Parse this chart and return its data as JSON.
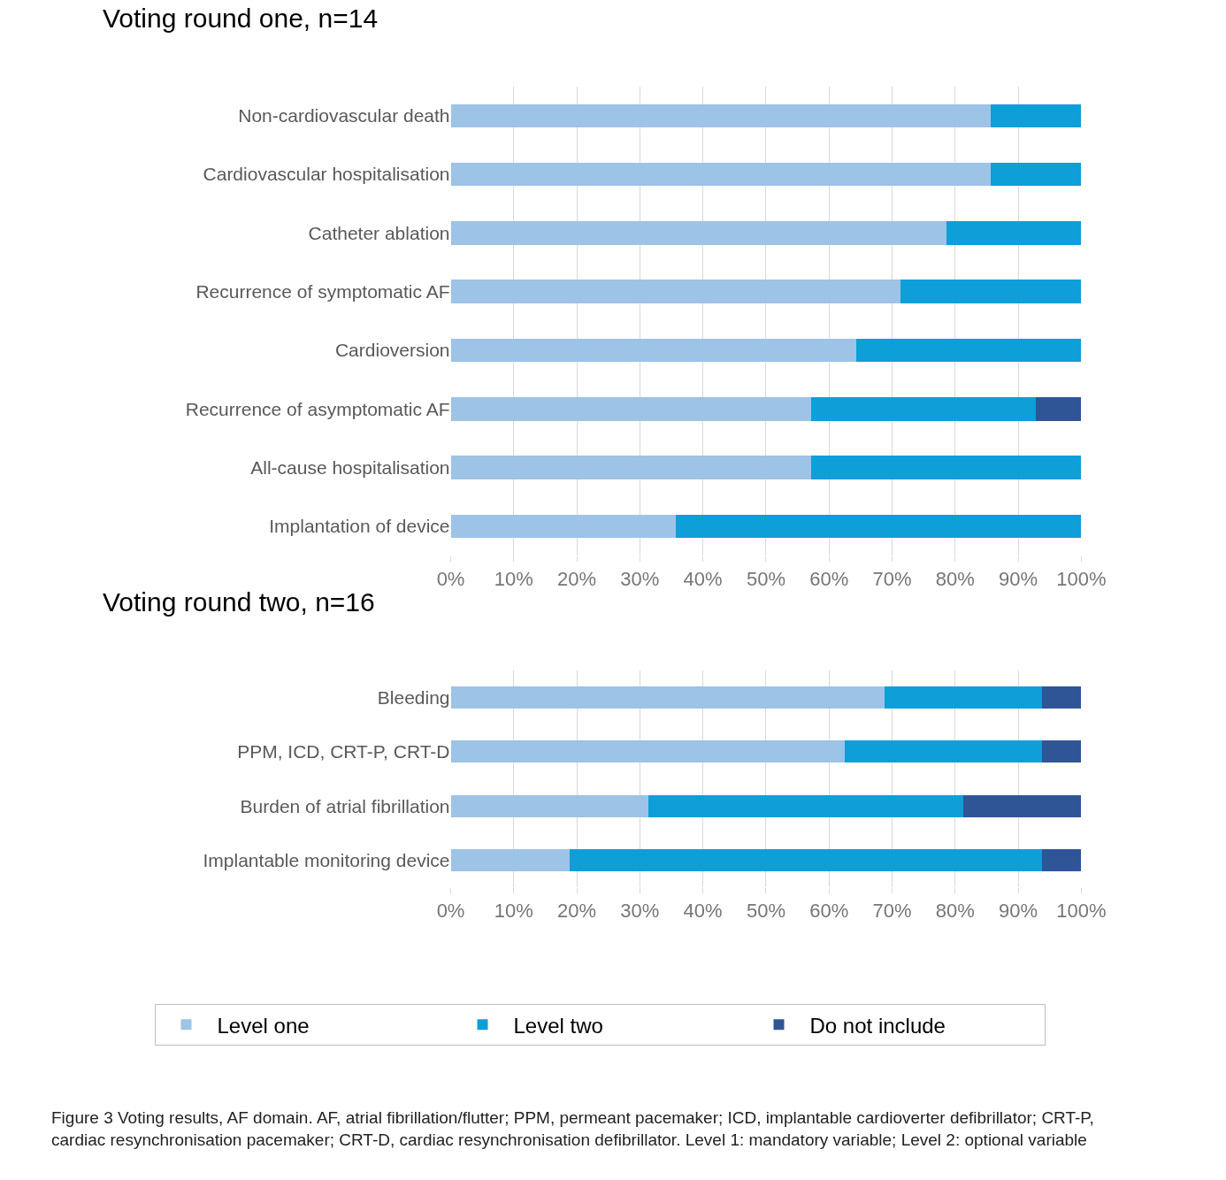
{
  "chart_data": [
    {
      "type": "bar",
      "orientation": "horizontal",
      "stacked": true,
      "title": "Voting round one, n=14",
      "categories": [
        "Non-cardiovascular death",
        "Cardiovascular hospitalisation",
        "Catheter ablation",
        "Recurrence of symptomatic AF",
        "Cardioversion",
        "Recurrence of asymptomatic AF",
        "All-cause hospitalisation",
        "Implantation of device"
      ],
      "series": [
        {
          "color": "#9dc3e6",
          "values": [
            85.7,
            85.7,
            78.6,
            71.4,
            64.3,
            57.1,
            57.1,
            35.7
          ]
        },
        {
          "color": "#0e9fd8",
          "values": [
            14.3,
            14.3,
            21.4,
            28.6,
            35.7,
            35.7,
            42.9,
            64.3
          ]
        },
        {
          "color": "#2f5597",
          "values": [
            null,
            null,
            null,
            null,
            null,
            7.2,
            null,
            null
          ]
        }
      ],
      "xlim": [
        0,
        100
      ],
      "xticks": [
        {
          "value": 0,
          "label": "0%"
        },
        {
          "value": 10,
          "label": "10%"
        },
        {
          "value": 20,
          "label": "20%"
        },
        {
          "value": 30,
          "label": "30%"
        },
        {
          "value": 40,
          "label": "40%"
        },
        {
          "value": 50,
          "label": "50%"
        },
        {
          "value": 60,
          "label": "60%"
        },
        {
          "value": 70,
          "label": "70%"
        },
        {
          "value": 80,
          "label": "80%"
        },
        {
          "value": 90,
          "label": "90%"
        },
        {
          "value": 100,
          "label": "100%"
        }
      ],
      "grid": "x",
      "legend": false
    },
    {
      "type": "bar",
      "orientation": "horizontal",
      "stacked": true,
      "title": "Voting round two, n=16",
      "categories": [
        "Bleeding",
        "PPM, ICD, CRT-P, CRT-D",
        "Burden of atrial fibrillation",
        "Implantable monitoring device"
      ],
      "series": [
        {
          "name": "Level one",
          "color": "#9dc3e6",
          "values": [
            68.8,
            62.5,
            31.3,
            18.8
          ]
        },
        {
          "name": "Level two",
          "color": "#0e9fd8",
          "values": [
            25,
            31.3,
            50,
            75
          ]
        },
        {
          "name": "Do not include",
          "color": "#2f5597",
          "values": [
            6.2,
            6.2,
            18.7,
            6.2
          ]
        }
      ],
      "xlim": [
        0,
        100
      ],
      "xticks": [
        {
          "value": 0,
          "label": "0%"
        },
        {
          "value": 10,
          "label": "10%"
        },
        {
          "value": 20,
          "label": "20%"
        },
        {
          "value": 30,
          "label": "30%"
        },
        {
          "value": 40,
          "label": "40%"
        },
        {
          "value": 50,
          "label": "50%"
        },
        {
          "value": 60,
          "label": "60%"
        },
        {
          "value": 70,
          "label": "70%"
        },
        {
          "value": 80,
          "label": "80%"
        },
        {
          "value": 90,
          "label": "90%"
        },
        {
          "value": 100,
          "label": "100%"
        }
      ],
      "grid": "x",
      "legend": "bottom",
      "annotations": [
        "Figure 3 Voting results, AF domain. AF, atrial fibrillation/flutter; PPM, permeant pacemaker; ICD, implantable cardioverter defibrillator; CRT-P, cardiac resynchronisation pacemaker; CRT-D, cardiac resynchronisation defibrillator. Level 1: mandatory variable; Level 2: optional variable"
      ]
    }
  ]
}
